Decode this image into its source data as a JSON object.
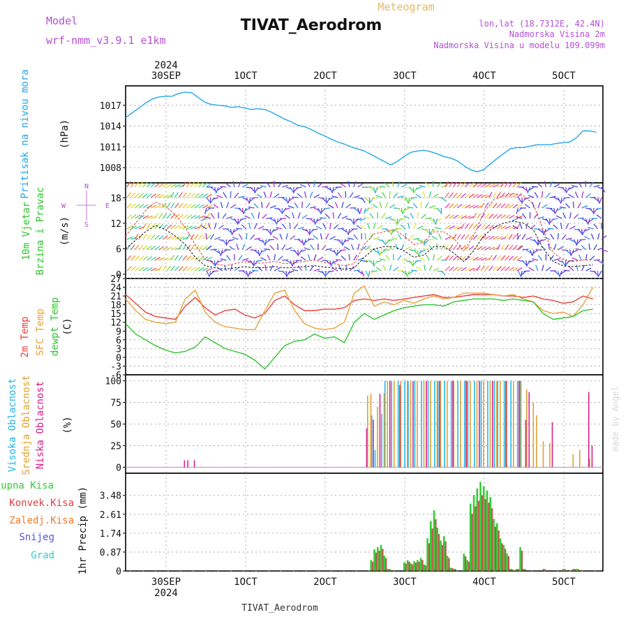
{
  "header": {
    "model_label": "Model",
    "model_value": "wrf-nmm_v3.9.1 e1km",
    "product": "Meteogram",
    "station": "TIVAT_Aerodrom",
    "coords": "lon,lat (18.7312E, 42.4N)",
    "altitude_line": "Nadmorska Visina 2m",
    "model_altitude_line": "Nadmorska Visina u modelu 109.099m",
    "footer_station": "TIVAT_Aerodrom",
    "credit": "made by Angel"
  },
  "colors": {
    "pressure": "#22a6e8",
    "wind_speed": "#111111",
    "wind_gust": "#e23c2c",
    "temp_2m": "#e8413a",
    "temp_sfc": "#e6a23c",
    "dewpoint": "#2ec42e",
    "cloud_high": "#23b5e6",
    "cloud_mid": "#e0a030",
    "cloud_low": "#d4208a",
    "precip_total": "#33cc33",
    "precip_conv": "#e23c3c",
    "precip_grid": "#cc66cc",
    "header_purple": "#b44fd6",
    "header_orange": "#e8b860"
  },
  "time_axis": {
    "top_labels": [
      "30SEP",
      "1OCT",
      "2OCT",
      "3OCT",
      "4OCT",
      "5OCT"
    ],
    "top_year": "2024",
    "bottom_labels": [
      "30SEP",
      "1OCT",
      "2OCT",
      "3OCT",
      "4OCT",
      "5OCT"
    ],
    "bottom_year": "2024"
  },
  "chart_data": [
    {
      "type": "line",
      "panel": "pressure",
      "ylabel_1": "Pritisak na nivou mora",
      "ylabel_2": "(hPa)",
      "yticks": [
        "1008",
        "1011",
        "1014",
        "1017"
      ],
      "ylim": [
        1005.8,
        1019.8
      ],
      "x_unit": "hours from 29 SEP 21 UTC",
      "series": [
        {
          "x": [
            0,
            2,
            4,
            6,
            8,
            10,
            12,
            14,
            16,
            18,
            20,
            22,
            24,
            26,
            28,
            30,
            32,
            34,
            36,
            38,
            40,
            42,
            44,
            46,
            48,
            50,
            52,
            54,
            56,
            58,
            60,
            62,
            64,
            66,
            68,
            70,
            72,
            74,
            76,
            78,
            80,
            82,
            84,
            86,
            88,
            90,
            92,
            94,
            96,
            98,
            100,
            102,
            104,
            106,
            108,
            110,
            112,
            114,
            116,
            118,
            120,
            122,
            124,
            126,
            128,
            130,
            132,
            134,
            136,
            138,
            140,
            142
          ],
          "y": [
            1015.2,
            1015.9,
            1016.6,
            1017.3,
            1017.9,
            1018.2,
            1018.3,
            1018.3,
            1018.7,
            1018.9,
            1018.8,
            1018.1,
            1017.4,
            1017.1,
            1017.0,
            1016.9,
            1016.7,
            1016.8,
            1016.6,
            1016.4,
            1016.5,
            1016.4,
            1016.0,
            1015.5,
            1015.0,
            1014.6,
            1014.1,
            1013.9,
            1013.5,
            1013.0,
            1012.6,
            1012.1,
            1011.7,
            1011.4,
            1011.0,
            1010.7,
            1010.4,
            1009.9,
            1009.4,
            1008.9,
            1008.4,
            1008.9,
            1009.6,
            1010.2,
            1010.4,
            1010.5,
            1010.3,
            1010.0,
            1009.6,
            1009.4,
            1009.0,
            1008.3,
            1007.7,
            1007.4,
            1007.7,
            1008.5,
            1009.3,
            1010.0,
            1010.7,
            1010.9,
            1010.9,
            1011.1,
            1011.3,
            1011.3,
            1011.3,
            1011.5,
            1011.6,
            1011.7,
            1012.3,
            1013.3,
            1013.3,
            1013.1
          ]
        }
      ]
    },
    {
      "type": "line",
      "panel": "wind",
      "ylabel_1": "10m Vjetar",
      "ylabel_2": "Brzina i Pravac",
      "ylabel_3": "(m/s)",
      "compass": [
        "N",
        "W",
        "E",
        "S"
      ],
      "yticks": [
        "0",
        "6",
        "12",
        "18"
      ],
      "ylim": [
        -1,
        21.5
      ],
      "series": [
        {
          "name": "speed",
          "x": [
            0,
            3,
            6,
            9,
            12,
            15,
            18,
            21,
            24,
            27,
            30,
            33,
            36,
            39,
            42,
            45,
            48,
            51,
            54,
            57,
            60,
            63,
            66,
            69,
            72,
            75,
            78,
            81,
            84,
            87,
            90,
            93,
            96,
            99,
            102,
            105,
            108,
            111,
            114,
            117,
            120,
            123,
            126,
            129,
            132,
            135,
            138,
            141
          ],
          "y": [
            6,
            8,
            10,
            11.5,
            10.5,
            9,
            7,
            4,
            2,
            1.5,
            1.2,
            1.5,
            1.8,
            1.5,
            1.6,
            1.8,
            1.5,
            1.6,
            1.8,
            2,
            1.7,
            1.5,
            1.2,
            1.5,
            4,
            6,
            6.5,
            6.5,
            5.5,
            4,
            4.5,
            6.5,
            6.5,
            5,
            3,
            5.5,
            9,
            11,
            12,
            12.5,
            12,
            10.5,
            6,
            3,
            2,
            1.8,
            2,
            2.2
          ]
        },
        {
          "name": "gust",
          "x": [
            0,
            3,
            6,
            9,
            12,
            15,
            18,
            21,
            24,
            27,
            30,
            33,
            36,
            39,
            42,
            45,
            48,
            51,
            54,
            57,
            60,
            63,
            66,
            69,
            72,
            75,
            78,
            81,
            84,
            87,
            90,
            93,
            96,
            99,
            102,
            105,
            108,
            111,
            114,
            117,
            120,
            123,
            126,
            129,
            132,
            135,
            138,
            141
          ],
          "y": [
            9,
            12,
            15,
            17,
            16,
            14,
            11,
            7,
            3.5,
            2.5,
            2,
            2.5,
            3,
            2.5,
            2.7,
            3,
            2.5,
            2.7,
            3,
            3.3,
            2.8,
            2.5,
            2,
            2.5,
            7,
            9.5,
            10,
            10.5,
            9,
            7,
            7.5,
            10,
            10,
            8.5,
            5.5,
            9,
            14.5,
            17.5,
            18.5,
            19,
            18.5,
            16.5,
            10.5,
            5,
            3.5,
            3,
            3.3,
            3.5
          ]
        }
      ]
    },
    {
      "type": "line",
      "panel": "temperature",
      "ylabel_1": "2m Temp",
      "ylabel_2": "SFC Temp",
      "ylabel_3": "dewpt Temp",
      "ylabel_4": "(C)",
      "yticks": [
        "-6",
        "-3",
        "0",
        "3",
        "6",
        "9",
        "12",
        "15",
        "18",
        "21",
        "24",
        "27"
      ],
      "ylim": [
        -6,
        27
      ],
      "series": [
        {
          "name": "2m Temp",
          "x": [
            0,
            3,
            6,
            9,
            12,
            15,
            18,
            21,
            24,
            27,
            30,
            33,
            36,
            39,
            42,
            45,
            48,
            51,
            54,
            57,
            60,
            63,
            66,
            69,
            72,
            75,
            78,
            81,
            84,
            87,
            90,
            93,
            96,
            99,
            102,
            105,
            108,
            111,
            114,
            117,
            120,
            123,
            126,
            129,
            132,
            135,
            138,
            141
          ],
          "y": [
            21.5,
            18.5,
            15.5,
            14,
            13.5,
            13,
            17.5,
            20.5,
            17,
            14.5,
            16,
            16.5,
            14.5,
            13.5,
            15,
            19.5,
            21,
            18,
            16,
            16,
            16.5,
            16.5,
            17,
            19.5,
            20,
            19.5,
            20,
            19.5,
            20,
            20.5,
            21,
            21.5,
            20.5,
            20.5,
            21,
            21.5,
            21.5,
            21.5,
            21,
            21,
            20.5,
            21,
            20,
            19.5,
            18.5,
            19,
            21,
            20
          ]
        },
        {
          "name": "SFC Temp",
          "x": [
            0,
            3,
            6,
            9,
            12,
            15,
            18,
            21,
            24,
            27,
            30,
            33,
            36,
            39,
            42,
            45,
            48,
            51,
            54,
            57,
            60,
            63,
            66,
            69,
            72,
            75,
            78,
            81,
            84,
            87,
            90,
            93,
            96,
            99,
            102,
            105,
            108,
            111,
            114,
            117,
            120,
            123,
            126,
            129,
            132,
            135,
            138,
            141
          ],
          "y": [
            20,
            16,
            13,
            12,
            11.5,
            12,
            20,
            23,
            15.5,
            12,
            10.5,
            10,
            9.5,
            9.5,
            16,
            22,
            23,
            16,
            11.5,
            10,
            9.5,
            10,
            12,
            22,
            24.5,
            17.5,
            19,
            18,
            19.5,
            18.5,
            20,
            21,
            20,
            20.5,
            22,
            22,
            22,
            21.5,
            21,
            21.5,
            20,
            19,
            16,
            15,
            15.5,
            14,
            18,
            24
          ]
        },
        {
          "name": "dewpt Temp",
          "x": [
            0,
            3,
            6,
            9,
            12,
            15,
            18,
            21,
            24,
            27,
            30,
            33,
            36,
            39,
            42,
            45,
            48,
            51,
            54,
            57,
            60,
            63,
            66,
            69,
            72,
            75,
            78,
            81,
            84,
            87,
            90,
            93,
            96,
            99,
            102,
            105,
            108,
            111,
            114,
            117,
            120,
            123,
            126,
            129,
            132,
            135,
            138,
            141
          ],
          "y": [
            11.5,
            8,
            6,
            4,
            2.5,
            1.5,
            2,
            3.5,
            7,
            5,
            3,
            2,
            1,
            -1,
            -4,
            0,
            4,
            5.5,
            6,
            8,
            6.5,
            7,
            5,
            12,
            15,
            13,
            14.5,
            16,
            17,
            17.5,
            18,
            18,
            17.5,
            19,
            19.5,
            20,
            20,
            20,
            19.5,
            20,
            19.5,
            19,
            15,
            13,
            13.5,
            14,
            16,
            16.5
          ]
        }
      ]
    },
    {
      "type": "bar",
      "panel": "cloud",
      "ylabel_1": "Visoka Oblacnost",
      "ylabel_2": "Srednja Oblacnost",
      "ylabel_3": "Niska Oblacnost",
      "ylabel_4": "(%)",
      "yticks": [
        "0",
        "25",
        "50",
        "75",
        "100"
      ],
      "ylim": [
        -7,
        107
      ],
      "series": [
        {
          "name": "high",
          "x": [
            74,
            75,
            77,
            78,
            80,
            82,
            84,
            85,
            87,
            89,
            91,
            93,
            94,
            96,
            98,
            100,
            102,
            103,
            105,
            107,
            109,
            111,
            112,
            114,
            116,
            118,
            119
          ],
          "y": [
            60,
            20,
            62,
            100,
            100,
            100,
            100,
            100,
            100,
            100,
            100,
            100,
            100,
            100,
            100,
            100,
            100,
            100,
            100,
            100,
            100,
            100,
            100,
            100,
            100,
            100,
            100
          ]
        },
        {
          "name": "mid",
          "x": [
            73,
            74,
            76,
            78,
            79,
            81,
            83,
            85,
            86,
            88,
            90,
            92,
            94,
            95,
            97,
            99,
            101,
            103,
            104,
            106,
            108,
            110,
            112,
            113,
            115,
            117,
            119,
            121,
            123,
            124,
            126,
            128,
            135,
            137,
            140
          ],
          "y": [
            83,
            85,
            70,
            86,
            100,
            100,
            100,
            100,
            100,
            100,
            100,
            100,
            100,
            100,
            100,
            100,
            100,
            100,
            100,
            100,
            100,
            100,
            100,
            100,
            100,
            100,
            100,
            90,
            75,
            60,
            30,
            28,
            15,
            20,
            10
          ]
        },
        {
          "name": "low",
          "x": [
            18,
            19,
            21,
            73,
            75,
            77,
            80,
            83,
            87,
            91,
            95,
            99,
            103,
            107,
            111,
            115,
            119,
            121,
            122,
            129,
            140,
            141
          ],
          "y": [
            8,
            8,
            8,
            45,
            55,
            85,
            100,
            95,
            100,
            100,
            100,
            100,
            100,
            100,
            100,
            100,
            100,
            55,
            87,
            52,
            87,
            25
          ]
        }
      ]
    },
    {
      "type": "bar",
      "panel": "precip",
      "ylabel_1": "Ukupna Kisa",
      "ylabel_2": "Konvek.Kisa",
      "ylabel_3": "Zaledj.Kisa",
      "ylabel_4": "Snijeg",
      "ylabel_5": "Grad",
      "ylabel_6": "1hr Precip (mm)",
      "yticks": [
        "0",
        "0.87",
        "1.74",
        "2.61",
        "3.48"
      ],
      "ylim": [
        0,
        4.5
      ],
      "series": [
        {
          "name": "total",
          "x": [
            74,
            75,
            76,
            77,
            78,
            79,
            80,
            84,
            85,
            86,
            87,
            88,
            89,
            90,
            91,
            92,
            93,
            94,
            95,
            96,
            97,
            98,
            99,
            102,
            103,
            104,
            105,
            106,
            107,
            108,
            109,
            110,
            111,
            112,
            113,
            114,
            115,
            116,
            117,
            118,
            119,
            120,
            126,
            132,
            135,
            136
          ],
          "y": [
            0.5,
            1.0,
            1.1,
            1.2,
            0.7,
            0.1,
            0.05,
            0.4,
            0.5,
            0.35,
            0.45,
            0.5,
            0.6,
            0.3,
            1.5,
            2.3,
            2.8,
            2.0,
            1.4,
            1.6,
            0.7,
            0.15,
            0.1,
            0.8,
            0.5,
            3.1,
            3.5,
            3.8,
            4.1,
            3.9,
            3.7,
            3.4,
            2.4,
            2.2,
            1.5,
            1.2,
            0.8,
            0.1,
            0.05,
            0.1,
            1.1,
            0.1,
            0.1,
            0.1,
            0.1,
            0.1
          ]
        }
      ]
    }
  ]
}
